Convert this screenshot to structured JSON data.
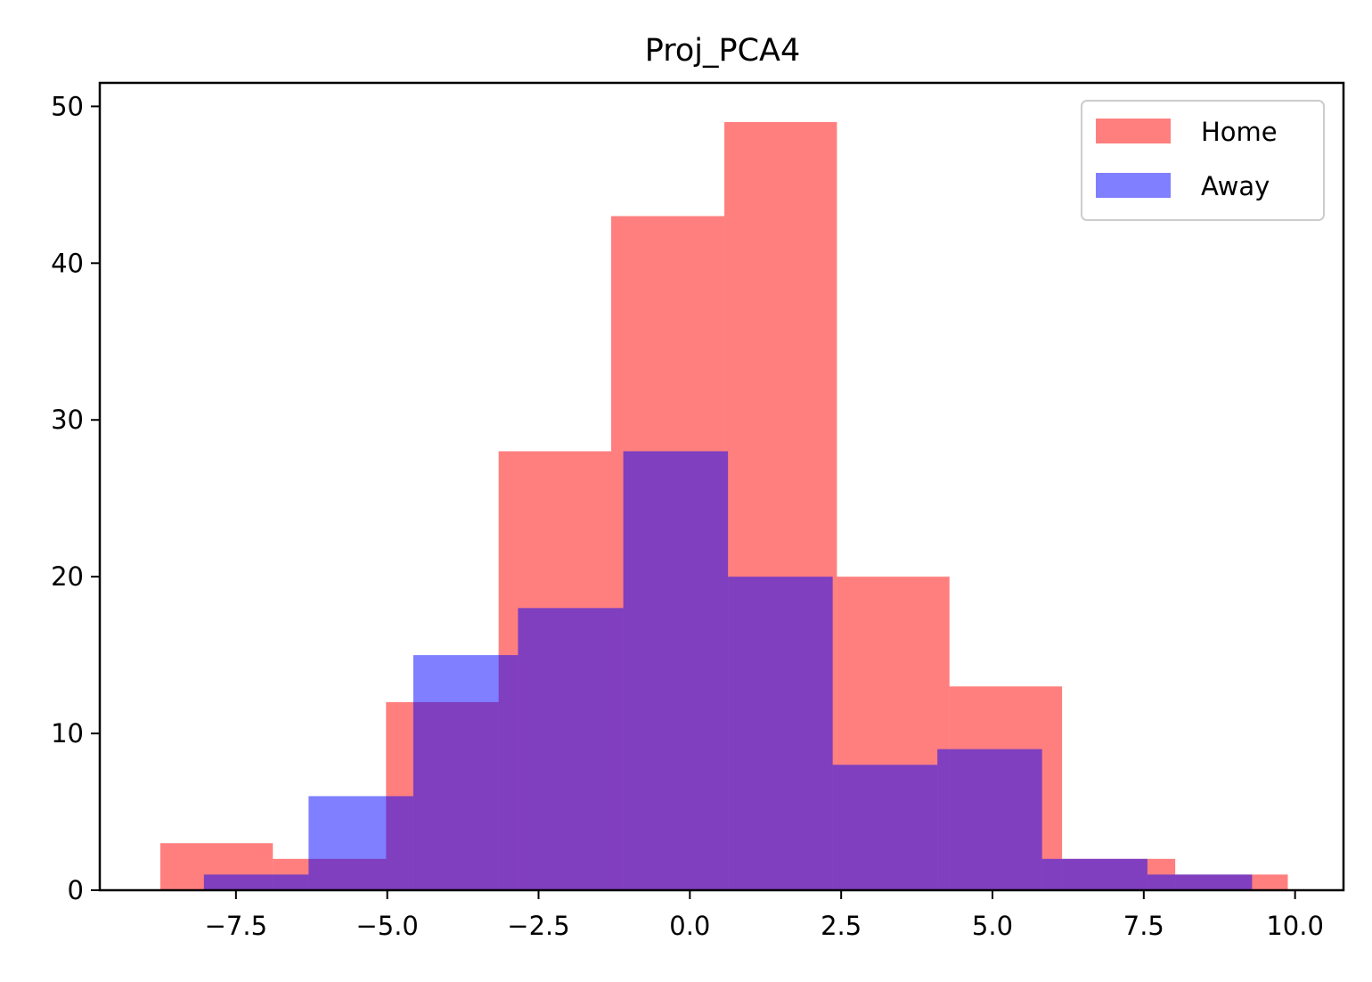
{
  "chart_data": {
    "type": "histogram",
    "title": "Proj_PCA4",
    "xlabel": "",
    "ylabel": "",
    "xlim": [
      -9.75,
      10.8
    ],
    "ylim": [
      0,
      51.5
    ],
    "x_ticks": [
      {
        "value": -7.5,
        "label": "−7.5"
      },
      {
        "value": -5.0,
        "label": "−5.0"
      },
      {
        "value": -2.5,
        "label": "−2.5"
      },
      {
        "value": 0.0,
        "label": "0.0"
      },
      {
        "value": 2.5,
        "label": "2.5"
      },
      {
        "value": 5.0,
        "label": "5.0"
      },
      {
        "value": 7.5,
        "label": "7.5"
      },
      {
        "value": 10.0,
        "label": "10.0"
      }
    ],
    "y_ticks": [
      {
        "value": 0,
        "label": "0"
      },
      {
        "value": 10,
        "label": "10"
      },
      {
        "value": 20,
        "label": "20"
      },
      {
        "value": 30,
        "label": "30"
      },
      {
        "value": 40,
        "label": "40"
      },
      {
        "value": 50,
        "label": "50"
      }
    ],
    "grid": false,
    "legend_position": "top-right",
    "series": [
      {
        "name": "Home",
        "color": "#ff0000",
        "opacity": 0.5,
        "bin_edges": [
          -8.75,
          -6.89,
          -5.02,
          -3.16,
          -1.3,
          0.57,
          2.43,
          4.29,
          6.15,
          8.02,
          9.88
        ],
        "counts": [
          3,
          2,
          12,
          28,
          43,
          49,
          20,
          13,
          2,
          1
        ]
      },
      {
        "name": "Away",
        "color": "#0000ff",
        "opacity": 0.5,
        "bin_edges": [
          -8.03,
          -6.3,
          -4.57,
          -2.84,
          -1.1,
          0.63,
          2.36,
          4.09,
          5.82,
          7.56,
          9.29
        ],
        "counts": [
          1,
          6,
          15,
          18,
          28,
          20,
          8,
          9,
          2,
          1
        ]
      }
    ]
  }
}
